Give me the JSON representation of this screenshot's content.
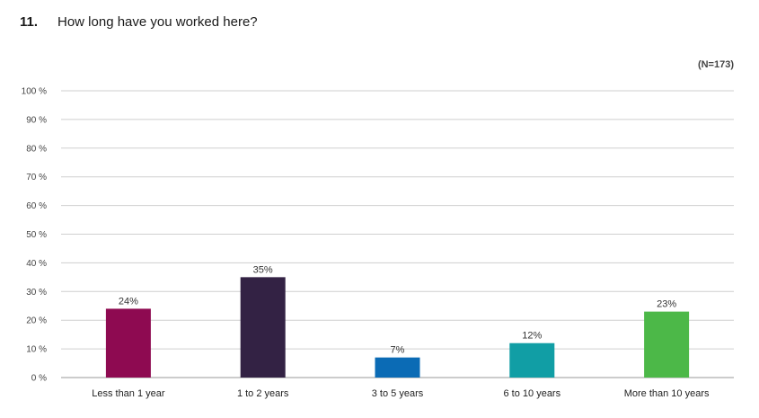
{
  "question": {
    "number": "11.",
    "text": "How long have you worked here?",
    "sample": "(N=173)"
  },
  "chart_data": {
    "type": "bar",
    "categories": [
      "Less than 1 year",
      "1 to 2 years",
      "3 to 5 years",
      "6 to 10 years",
      "More than 10 years"
    ],
    "values": [
      24,
      35,
      7,
      12,
      23
    ],
    "data_labels": [
      "24%",
      "35%",
      "7%",
      "12%",
      "23%"
    ],
    "colors": [
      "#8e0a51",
      "#332244",
      "#0b6bb5",
      "#119ea5",
      "#4cb848"
    ],
    "ylim": [
      0,
      100
    ],
    "yticks": [
      0,
      10,
      20,
      30,
      40,
      50,
      60,
      70,
      80,
      90,
      100
    ],
    "ytick_labels": [
      "0 %",
      "10 %",
      "20 %",
      "30 %",
      "40 %",
      "50 %",
      "60 %",
      "70 %",
      "80 %",
      "90 %",
      "100 %"
    ],
    "grid": true
  }
}
